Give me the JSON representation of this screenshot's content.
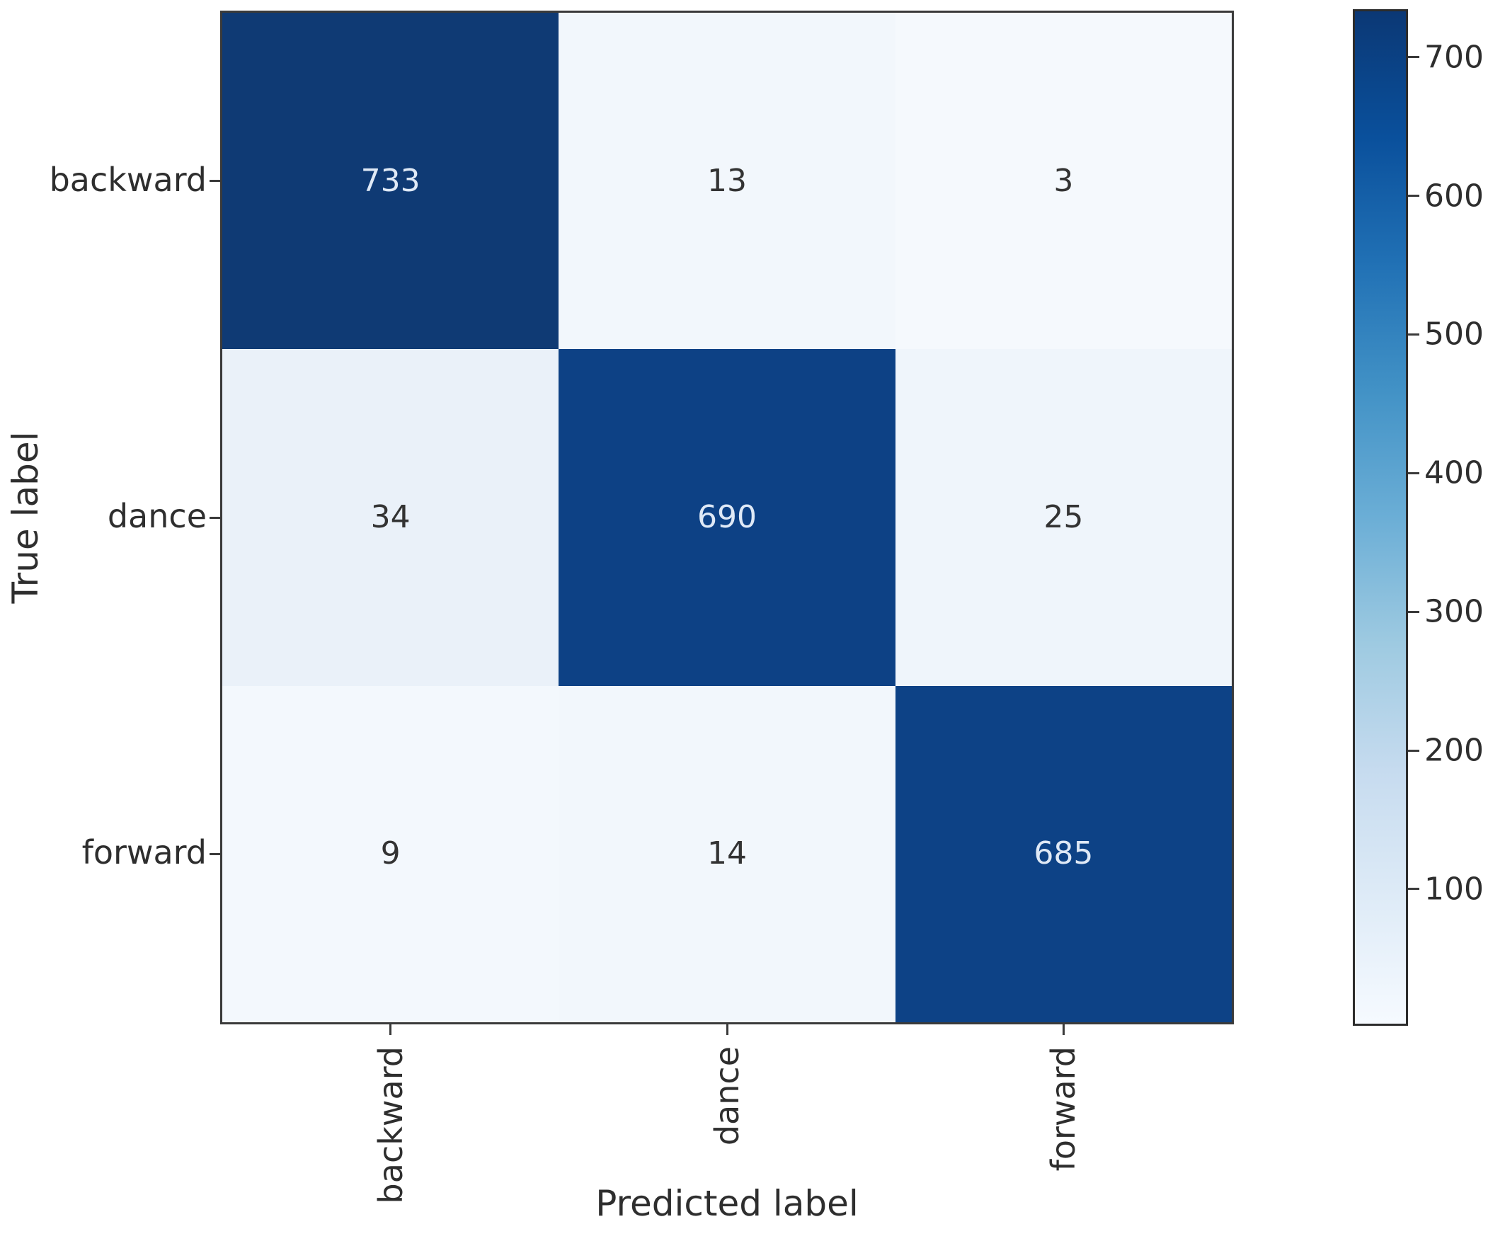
{
  "chart_data": {
    "type": "heatmap",
    "subtype": "confusion-matrix",
    "title": "",
    "xlabel": "Predicted label",
    "ylabel": "True label",
    "x_categories": [
      "backward",
      "dance",
      "forward"
    ],
    "y_categories": [
      "backward",
      "dance",
      "forward"
    ],
    "matrix": [
      [
        733,
        13,
        3
      ],
      [
        34,
        690,
        25
      ],
      [
        9,
        14,
        685
      ]
    ],
    "colormap": "Blues",
    "vmin": 3,
    "vmax": 733,
    "colorbar_ticks": [
      700,
      600,
      500,
      400,
      300,
      200,
      100
    ],
    "legend_position": "right-colorbar",
    "grid": false
  },
  "cell_bg_colors": [
    [
      "#0f3a74",
      "#f2f7fc",
      "#f5f9fd"
    ],
    [
      "#eaf1f9",
      "#0d4185",
      "#eff5fb"
    ],
    [
      "#f3f8fd",
      "#f2f7fc",
      "#0d4286"
    ]
  ],
  "cell_text_colors": [
    [
      "#dfe9f6",
      "#333333",
      "#333333"
    ],
    [
      "#333333",
      "#dfe9f6",
      "#333333"
    ],
    [
      "#333333",
      "#333333",
      "#dfe9f6"
    ]
  ],
  "colors": {
    "background": "#ffffff",
    "axis_border": "#3a3a3a",
    "tick_text": "#2e2e2e",
    "colorbar_gradient_bottom_to_top": [
      "#f6faff",
      "#deebf7",
      "#c6dbef",
      "#9ecae1",
      "#6baed6",
      "#4292c6",
      "#2171b5",
      "#0a509c",
      "#0b3875"
    ]
  }
}
